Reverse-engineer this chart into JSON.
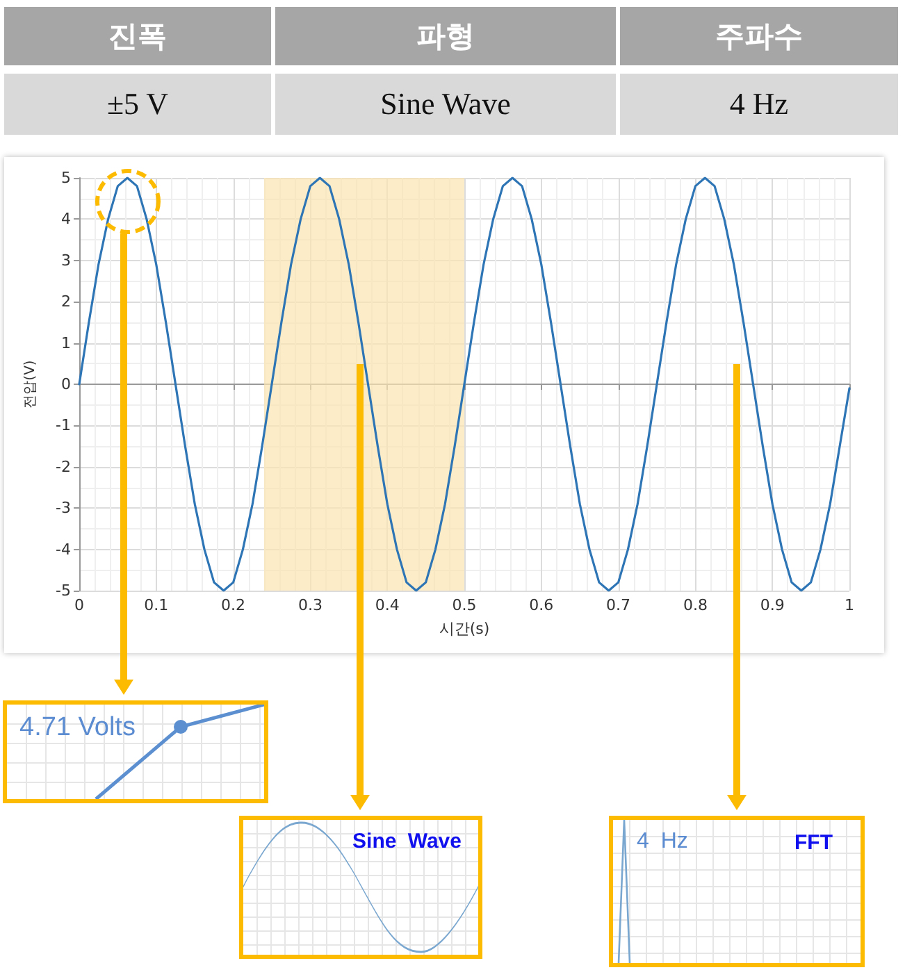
{
  "chart_data": {
    "type": "line",
    "xlabel": "시간(s)",
    "ylabel": "전압(V)",
    "x": [
      0,
      0.0125,
      0.025,
      0.0375,
      0.05,
      0.0625,
      0.075,
      0.0875,
      0.1,
      0.1125,
      0.125,
      0.1375,
      0.15,
      0.1625,
      0.175,
      0.1875,
      0.2,
      0.2125,
      0.225,
      0.2375,
      0.25,
      0.2625,
      0.275,
      0.2875,
      0.3,
      0.3125,
      0.325,
      0.3375,
      0.35,
      0.3625,
      0.375,
      0.3875,
      0.4,
      0.4125,
      0.425,
      0.4375,
      0.45,
      0.4625,
      0.475,
      0.4875,
      0.5,
      0.5125,
      0.525,
      0.5375,
      0.55,
      0.5625,
      0.575,
      0.5875,
      0.6,
      0.6125,
      0.625,
      0.6375,
      0.65,
      0.6625,
      0.675,
      0.6875,
      0.7,
      0.7125,
      0.725,
      0.7375,
      0.75,
      0.7625,
      0.775,
      0.7875,
      0.8,
      0.8125,
      0.825,
      0.8375,
      0.85,
      0.8625,
      0.875,
      0.8875,
      0.9,
      0.9125,
      0.925,
      0.9375,
      0.95,
      0.9625,
      0.975,
      0.9875,
      1
    ],
    "values": [
      0,
      1.5,
      2.9,
      4,
      4.8,
      5,
      4.8,
      4,
      2.9,
      1.5,
      0,
      -1.5,
      -2.9,
      -4,
      -4.8,
      -5,
      -4.8,
      -4,
      -2.9,
      -1.5,
      0,
      1.5,
      2.9,
      4,
      4.8,
      5,
      4.8,
      4,
      2.9,
      1.5,
      0,
      -1.5,
      -2.9,
      -4,
      -4.8,
      -5,
      -4.8,
      -4,
      -2.9,
      -1.5,
      0,
      1.5,
      2.9,
      4,
      4.8,
      5,
      4.8,
      4,
      2.9,
      1.5,
      0,
      -1.5,
      -2.9,
      -4,
      -4.8,
      -5,
      -4.8,
      -4,
      -2.9,
      -1.5,
      0,
      1.5,
      2.9,
      4,
      4.8,
      5,
      4.8,
      4,
      2.9,
      1.5,
      0,
      -1.5,
      -2.9,
      -4,
      -4.8,
      -5,
      -4.8,
      -4,
      -2.9,
      -1.5,
      -0.1
    ],
    "color": "#2e75b6",
    "marker": "none",
    "line_style": "solid",
    "xlim": [
      0,
      1
    ],
    "xticks": [
      0,
      0.1,
      0.2,
      0.3,
      0.4,
      0.5,
      0.6,
      0.7,
      0.8,
      0.9,
      1
    ],
    "ylim": [
      -5,
      5
    ],
    "yticks": [
      -5,
      -4,
      -3,
      -2,
      -1,
      0,
      1,
      2,
      3,
      4,
      5
    ],
    "grid": true,
    "bands": [
      {
        "axis": "x",
        "from": 0.24,
        "to": 0.5,
        "color": "#fbe5b0"
      }
    ],
    "annotations": [
      "진폭",
      "파형",
      "주파수",
      "±5 V",
      "Sine Wave",
      "4 Hz",
      "4.71 Volts",
      "Sine Wave",
      "4 Hz",
      "FFT"
    ]
  }
}
